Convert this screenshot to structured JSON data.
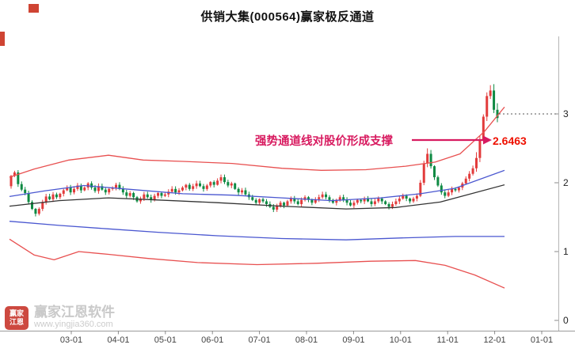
{
  "header": {
    "title": "供销大集(000564)赢家极反通道"
  },
  "annotation": {
    "support_text": "强势通道线对股价形成支撑",
    "price_label": "2.6463"
  },
  "watermark": {
    "logo_top": "赢家",
    "logo_bottom": "江恩",
    "brand": "赢家江恩软件",
    "url": "www.yingjia360.com"
  },
  "chart_data": {
    "type": "candlestick",
    "title": "供销大集(000564)赢家极反通道",
    "stock_name": "供销大集",
    "symbol": "000564",
    "overlay_name": "赢家极反通道",
    "ylim": [
      0,
      3.5
    ],
    "y_ticks": [
      3,
      2,
      1,
      0
    ],
    "x_labels": [
      "03-01",
      "04-01",
      "05-01",
      "06-01",
      "07-01",
      "08-01",
      "09-01",
      "10-01",
      "11-01",
      "12-01",
      "01-01"
    ],
    "support_price": 2.6463,
    "first_open": 1.95,
    "closes": [
      2.1,
      2.15,
      1.98,
      1.9,
      1.85,
      1.72,
      1.62,
      1.55,
      1.62,
      1.72,
      1.8,
      1.76,
      1.83,
      1.79,
      1.84,
      1.89,
      1.93,
      1.86,
      1.91,
      1.96,
      1.89,
      1.93,
      1.99,
      1.93,
      1.88,
      1.95,
      1.9,
      1.86,
      1.91,
      1.93,
      1.97,
      1.91,
      1.86,
      1.81,
      1.85,
      1.79,
      1.73,
      1.77,
      1.83,
      1.79,
      1.75,
      1.81,
      1.85,
      1.81,
      1.83,
      1.87,
      1.91,
      1.86,
      1.89,
      1.93,
      1.97,
      1.91,
      1.95,
      1.99,
      1.95,
      1.91,
      1.96,
      2.01,
      1.97,
      2.03,
      2.08,
      2.01,
      1.96,
      1.99,
      1.91,
      1.86,
      1.89,
      1.83,
      1.79,
      1.75,
      1.71,
      1.76,
      1.73,
      1.69,
      1.65,
      1.61,
      1.66,
      1.71,
      1.67,
      1.73,
      1.77,
      1.73,
      1.69,
      1.75,
      1.79,
      1.75,
      1.71,
      1.76,
      1.79,
      1.83,
      1.79,
      1.75,
      1.71,
      1.75,
      1.79,
      1.75,
      1.71,
      1.67,
      1.71,
      1.75,
      1.73,
      1.77,
      1.73,
      1.69,
      1.73,
      1.77,
      1.73,
      1.69,
      1.65,
      1.69,
      1.73,
      1.77,
      1.81,
      1.77,
      1.73,
      1.77,
      1.81,
      2.0,
      2.28,
      2.42,
      2.24,
      2.08,
      1.96,
      1.86,
      1.81,
      1.86,
      1.91,
      1.89,
      1.93,
      1.99,
      2.06,
      2.13,
      2.21,
      2.36,
      2.62,
      2.96,
      3.26,
      3.34,
      3.06,
      2.94
    ],
    "channels": {
      "upper_red": [
        [
          0,
          2.08
        ],
        [
          0.05,
          2.2
        ],
        [
          0.12,
          2.33
        ],
        [
          0.2,
          2.4
        ],
        [
          0.27,
          2.33
        ],
        [
          0.35,
          2.31
        ],
        [
          0.45,
          2.28
        ],
        [
          0.55,
          2.21
        ],
        [
          0.63,
          2.18
        ],
        [
          0.72,
          2.19
        ],
        [
          0.8,
          2.24
        ],
        [
          0.86,
          2.3
        ],
        [
          0.91,
          2.42
        ],
        [
          0.96,
          2.75
        ],
        [
          1,
          3.1
        ]
      ],
      "upper_blue": [
        [
          0,
          1.8
        ],
        [
          0.07,
          1.88
        ],
        [
          0.15,
          1.96
        ],
        [
          0.25,
          1.9
        ],
        [
          0.35,
          1.84
        ],
        [
          0.45,
          1.82
        ],
        [
          0.55,
          1.78
        ],
        [
          0.65,
          1.74
        ],
        [
          0.75,
          1.78
        ],
        [
          0.83,
          1.84
        ],
        [
          0.9,
          1.92
        ],
        [
          1,
          2.18
        ]
      ],
      "middle": [
        [
          0,
          1.66
        ],
        [
          0.1,
          1.74
        ],
        [
          0.2,
          1.78
        ],
        [
          0.3,
          1.75
        ],
        [
          0.42,
          1.71
        ],
        [
          0.55,
          1.66
        ],
        [
          0.68,
          1.62
        ],
        [
          0.78,
          1.64
        ],
        [
          0.87,
          1.72
        ],
        [
          1,
          1.97
        ]
      ],
      "lower_blue": [
        [
          0,
          1.44
        ],
        [
          0.1,
          1.38
        ],
        [
          0.2,
          1.33
        ],
        [
          0.3,
          1.28
        ],
        [
          0.42,
          1.23
        ],
        [
          0.55,
          1.19
        ],
        [
          0.68,
          1.17
        ],
        [
          0.8,
          1.2
        ],
        [
          0.9,
          1.22
        ],
        [
          1,
          1.22
        ]
      ],
      "lower_red": [
        [
          0,
          1.18
        ],
        [
          0.05,
          0.95
        ],
        [
          0.09,
          0.88
        ],
        [
          0.14,
          1.0
        ],
        [
          0.2,
          0.96
        ],
        [
          0.28,
          0.9
        ],
        [
          0.38,
          0.84
        ],
        [
          0.5,
          0.81
        ],
        [
          0.62,
          0.83
        ],
        [
          0.73,
          0.86
        ],
        [
          0.82,
          0.87
        ],
        [
          0.88,
          0.8
        ],
        [
          0.94,
          0.66
        ],
        [
          1,
          0.47
        ]
      ]
    },
    "colors": {
      "up": "#e23b3b",
      "down": "#0e8a43",
      "channel_red": "#e85050",
      "channel_blue": "#4a57d0",
      "channel_mid": "#333333",
      "annotation": "#d81b60",
      "price": "#ee1000"
    }
  }
}
